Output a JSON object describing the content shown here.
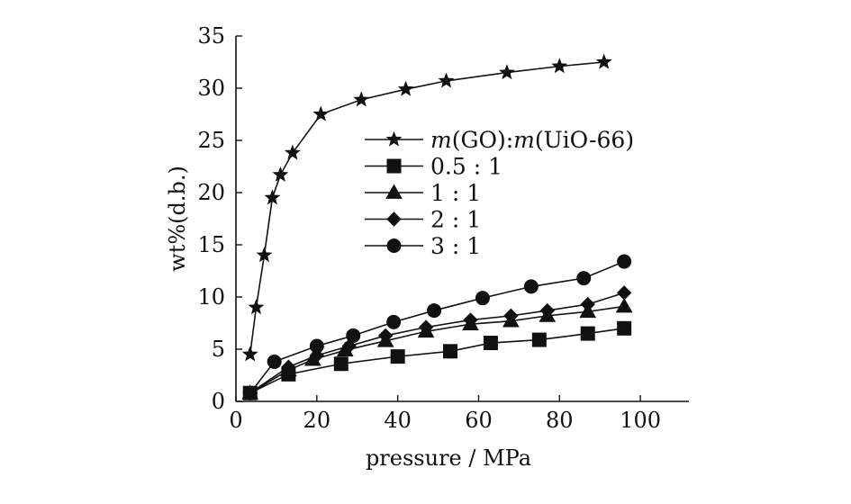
{
  "chart_data": {
    "type": "line",
    "xlabel": "pressure / MPa",
    "ylabel": "wt%(d.b.)",
    "xlim": [
      0,
      112
    ],
    "ylim": [
      0,
      35
    ],
    "xticks": [
      0,
      20,
      40,
      60,
      80,
      100
    ],
    "yticks": [
      0,
      5,
      10,
      15,
      20,
      25,
      30,
      35
    ],
    "grid": false,
    "legend_position": "upper-right",
    "legend_title": "m(GO):m(UiO-66)",
    "series": [
      {
        "name": "m(GO):m(UiO-66)",
        "marker": "star",
        "x": [
          3.5,
          5,
          7,
          9,
          11,
          14,
          21,
          31,
          42,
          52,
          67,
          80,
          91
        ],
        "y": [
          4.5,
          9,
          14,
          19.5,
          21.7,
          23.8,
          27.5,
          28.9,
          29.9,
          30.7,
          31.5,
          32.1,
          32.5
        ]
      },
      {
        "name": "0.5 : 1",
        "marker": "square",
        "x": [
          3.5,
          13,
          26,
          40,
          53,
          63,
          75,
          87,
          96
        ],
        "y": [
          0.8,
          2.6,
          3.6,
          4.3,
          4.8,
          5.6,
          5.9,
          6.5,
          7.0
        ]
      },
      {
        "name": "1 : 1",
        "marker": "triangle",
        "x": [
          3.5,
          13,
          19,
          27,
          37,
          47,
          58,
          68,
          77,
          87,
          96
        ],
        "y": [
          0.8,
          3.0,
          4.0,
          4.9,
          5.8,
          6.7,
          7.4,
          7.7,
          8.2,
          8.6,
          9.1
        ]
      },
      {
        "name": "2 : 1",
        "marker": "diamond",
        "x": [
          3.5,
          13,
          20,
          28,
          37,
          47,
          58,
          68,
          77,
          87,
          96
        ],
        "y": [
          0.8,
          3.3,
          4.4,
          5.3,
          6.3,
          7.1,
          7.8,
          8.2,
          8.7,
          9.3,
          10.4
        ]
      },
      {
        "name": "3 : 1",
        "marker": "circle",
        "x": [
          3.5,
          9.5,
          20,
          29,
          39,
          49,
          61,
          73,
          86,
          96
        ],
        "y": [
          0.8,
          3.8,
          5.3,
          6.3,
          7.6,
          8.7,
          9.9,
          11.0,
          11.8,
          13.4
        ]
      }
    ]
  }
}
